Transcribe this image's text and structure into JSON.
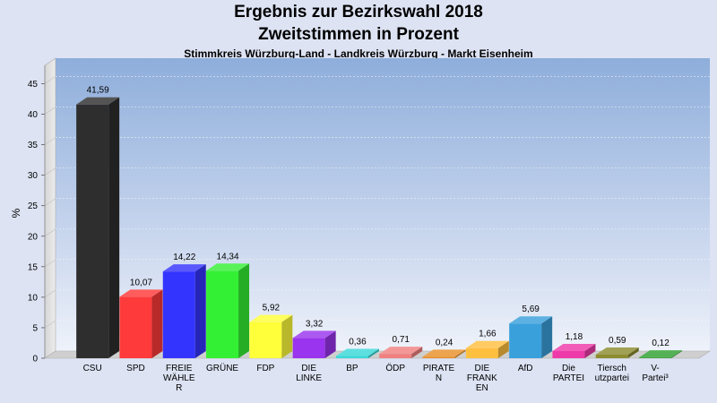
{
  "header": {
    "title_line1": "Ergebnis zur Bezirkswahl 2018",
    "title_line2": "Zweitstimmen in Prozent",
    "subtitle": "Stimmkreis Würzburg-Land - Landkreis Würzburg - Markt Eisenheim"
  },
  "chart_data": {
    "type": "bar",
    "ylabel": "%",
    "ylim": [
      0,
      48
    ],
    "yticks": [
      0,
      5,
      10,
      15,
      20,
      25,
      30,
      35,
      40,
      45
    ],
    "grid": true,
    "categories": [
      [
        "CSU"
      ],
      [
        "SPD"
      ],
      [
        "FREIE",
        "WÄHLE",
        "R"
      ],
      [
        "GRÜNE"
      ],
      [
        "FDP"
      ],
      [
        "DIE",
        "LINKE"
      ],
      [
        "BP"
      ],
      [
        "ÖDP"
      ],
      [
        "PIRATE",
        "N"
      ],
      [
        "DIE",
        "FRANK",
        "EN"
      ],
      [
        "AfD"
      ],
      [
        "Die",
        "PARTEI"
      ],
      [
        "Tiersch",
        "utzpartei"
      ],
      [
        "V-",
        "Partei³"
      ]
    ],
    "values": [
      41.59,
      10.07,
      14.22,
      14.34,
      5.92,
      3.32,
      0.36,
      0.71,
      0.24,
      1.66,
      5.69,
      1.18,
      0.59,
      0.12
    ],
    "value_labels": [
      "41,59",
      "10,07",
      "14,22",
      "14,34",
      "5,92",
      "3,32",
      "0,36",
      "0,71",
      "0,24",
      "1,66",
      "5,69",
      "1,18",
      "0,59",
      "0,12"
    ],
    "colors": [
      "#2e2e2e",
      "#ff3a3a",
      "#3434ff",
      "#34f034",
      "#ffff3a",
      "#9a34ee",
      "#3ad8d8",
      "#f08080",
      "#e8902a",
      "#ffc040",
      "#3aa0dc",
      "#ee3aa8",
      "#8c8c30",
      "#30a030"
    ]
  }
}
